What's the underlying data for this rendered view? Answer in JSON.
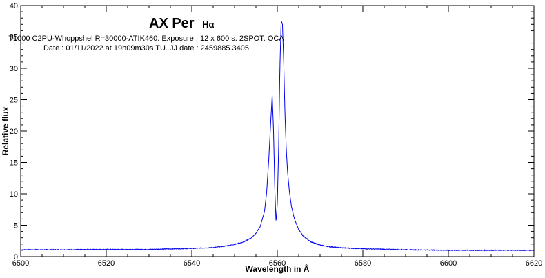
{
  "chart_data": {
    "type": "line",
    "title": "AX Per",
    "title_suffix": "Hα",
    "subtitle_lines": [
      "T1000 C2PU-Whoppshel R=30000-ATIK460. Exposure : 12 x 600 s. 2SPOT. OCA",
      "Date : 01/11/2022 at 19h09m30s TU. JJ date : 2459885.3405"
    ],
    "xlabel": "Wavelength in Å",
    "ylabel": "Relative flux",
    "xlim": [
      6500,
      6620
    ],
    "ylim": [
      0,
      40
    ],
    "x_ticks": [
      6500,
      6520,
      6540,
      6560,
      6580,
      6600,
      6620
    ],
    "y_ticks": [
      0,
      5,
      10,
      15,
      20,
      25,
      30,
      35,
      40
    ],
    "x_minor_step": 5,
    "y_minor_step": 1,
    "grid": false,
    "line_color": "#0000ee",
    "series": [
      {
        "x": [
          6500,
          6510,
          6520,
          6530,
          6540,
          6545,
          6548,
          6550,
          6552,
          6554,
          6555,
          6556,
          6557,
          6557.5,
          6558,
          6558.5,
          6558.8,
          6559.1,
          6559.4,
          6559.7,
          6560.0,
          6560.3,
          6560.6,
          6560.9,
          6561.2,
          6561.5,
          6561.8,
          6562.1,
          6562.4,
          6562.8,
          6563.3,
          6564,
          6565,
          6566,
          6567,
          6568,
          6570,
          6572,
          6575,
          6580,
          6590,
          6600,
          6610,
          6620
        ],
        "y": [
          1.1,
          1.1,
          1.15,
          1.15,
          1.3,
          1.45,
          1.7,
          1.95,
          2.3,
          3.0,
          3.7,
          4.8,
          7.2,
          10.2,
          15.5,
          22.0,
          25.7,
          20.5,
          11.0,
          5.4,
          8.5,
          17.0,
          30.0,
          37.6,
          37.0,
          31.0,
          22.5,
          17.0,
          13.5,
          10.5,
          8.0,
          6.0,
          4.3,
          3.3,
          2.8,
          2.3,
          1.85,
          1.6,
          1.4,
          1.25,
          1.1,
          1.0,
          1.0,
          1.0
        ]
      }
    ]
  }
}
